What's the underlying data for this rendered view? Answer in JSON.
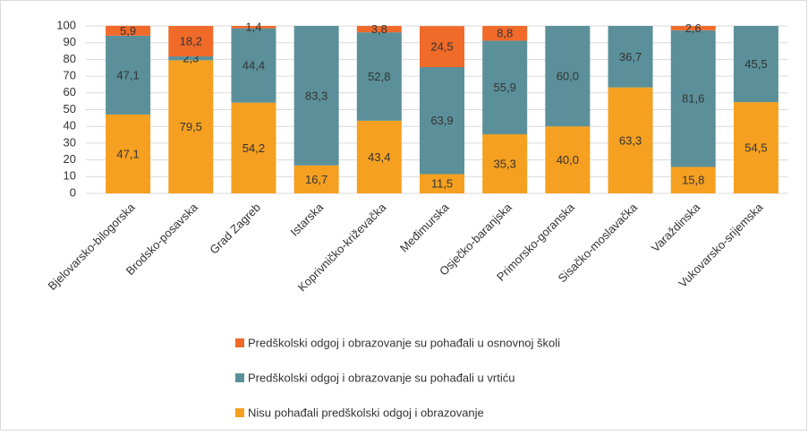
{
  "chart_data": {
    "type": "stacked_bar",
    "categories": [
      "Bjelovarsko-bilogorska",
      "Brodsko-posavska",
      "Grad Zagreb",
      "Istarska",
      "Koprivničko-križevačka",
      "Međimurska",
      "Osječko-baranjska",
      "Primorsko-goranska",
      "Sisačko-moslavačka",
      "Varaždinska",
      "Vukovarsko-srijemska"
    ],
    "series": [
      {
        "name": "Nisu pohađali predškolski odgoj i obrazovanje",
        "color": "#f5a020",
        "values": [
          47.1,
          79.5,
          54.2,
          16.7,
          43.4,
          11.5,
          35.3,
          40.0,
          63.3,
          15.8,
          54.5
        ],
        "value_labels": [
          "47,1",
          "79,5",
          "54,2",
          "16,7",
          "43,4",
          "11,5",
          "35,3",
          "40,0",
          "63,3",
          "15,8",
          "54,5"
        ]
      },
      {
        "name": "Predškolski odgoj i obrazovanje su pohađali u vrtiću",
        "color": "#5b909a",
        "values": [
          47.1,
          2.3,
          44.4,
          83.3,
          52.8,
          63.9,
          55.9,
          60.0,
          36.7,
          81.6,
          45.5
        ],
        "value_labels": [
          "47,1",
          "2,3",
          "44,4",
          "83,3",
          "52,8",
          "63,9",
          "55,9",
          "60,0",
          "36,7",
          "81,6",
          "45,5"
        ]
      },
      {
        "name": "Predškolski odgoj i obrazovanje su pohađali u osnovnoj školi",
        "color": "#f06a2a",
        "values": [
          5.9,
          18.2,
          1.4,
          null,
          3.8,
          24.5,
          8.8,
          null,
          null,
          2.6,
          null
        ],
        "value_labels": [
          "5,9",
          "18,2",
          "1,4",
          null,
          "3,8",
          "24,5",
          "8,8",
          null,
          null,
          "2,6",
          null
        ]
      }
    ],
    "ylim": [
      0,
      100
    ],
    "yticks": [
      0,
      10,
      20,
      30,
      40,
      50,
      60,
      70,
      80,
      90,
      100
    ],
    "grid": true
  }
}
